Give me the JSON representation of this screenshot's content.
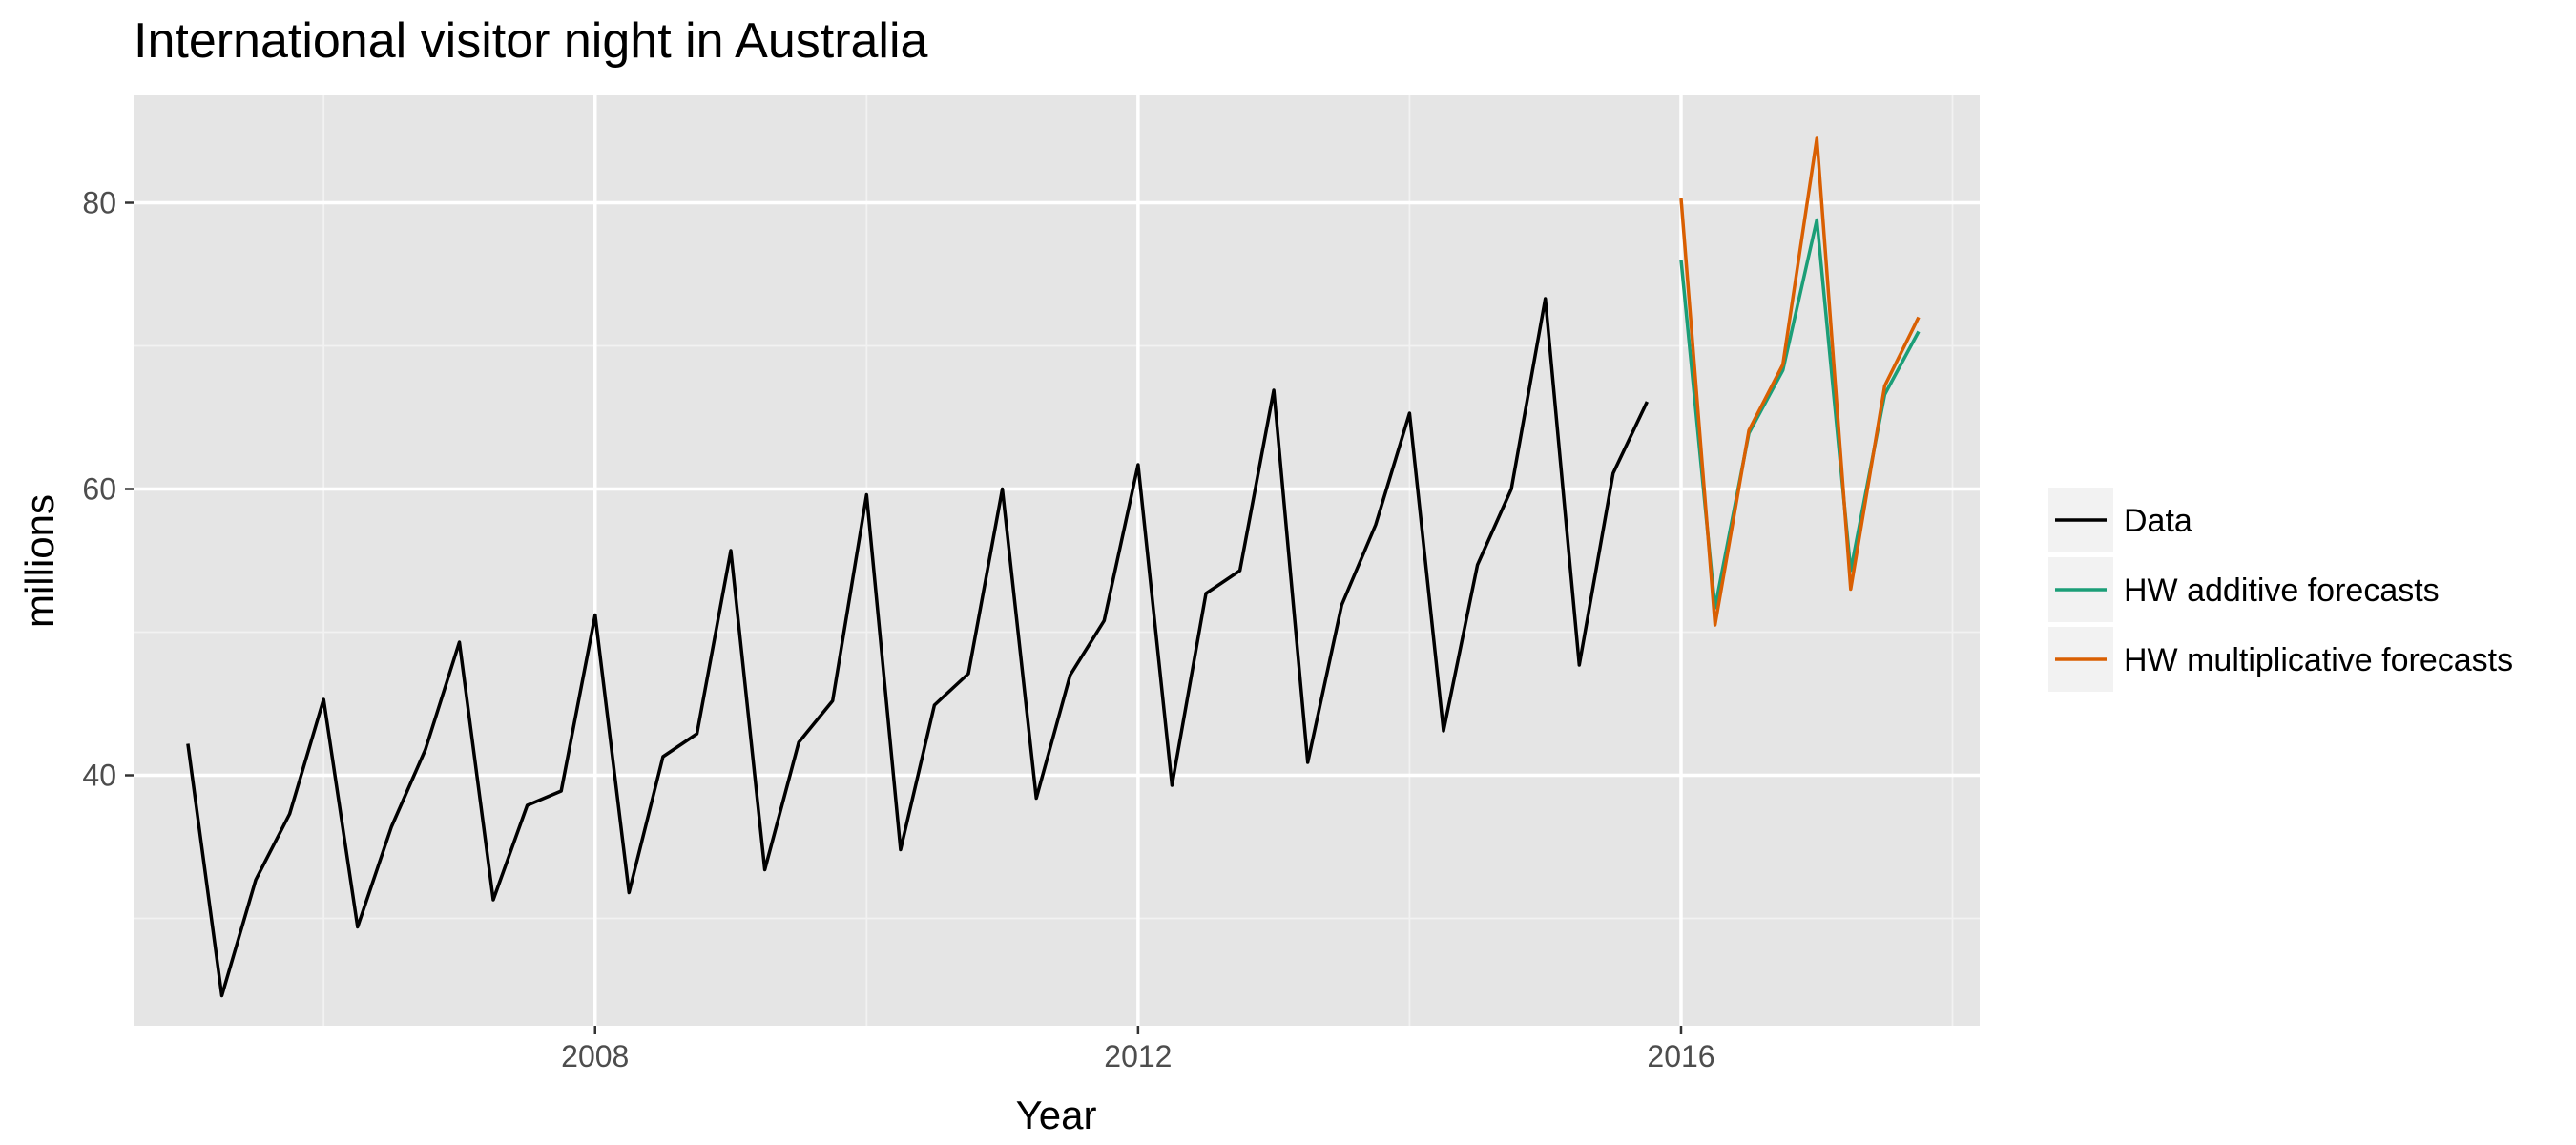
{
  "chart_data": {
    "type": "line",
    "title": "International visitor night in Australia",
    "xlabel": "Year",
    "ylabel": "millions",
    "xlim": [
      2004.6,
      2018.2
    ],
    "ylim": [
      22.5,
      87.5
    ],
    "x_ticks": [
      2008,
      2012,
      2016
    ],
    "x_tick_labels": [
      "2008",
      "2012",
      "2016"
    ],
    "y_ticks": [
      40,
      60,
      80
    ],
    "y_tick_labels": [
      "40",
      "60",
      "80"
    ],
    "grid": true,
    "legend_position": "right",
    "series": [
      {
        "name": "Data",
        "color": "#000000",
        "x": [
          2005.0,
          2005.25,
          2005.5,
          2005.75,
          2006.0,
          2006.25,
          2006.5,
          2006.75,
          2007.0,
          2007.25,
          2007.5,
          2007.75,
          2008.0,
          2008.25,
          2008.5,
          2008.75,
          2009.0,
          2009.25,
          2009.5,
          2009.75,
          2010.0,
          2010.25,
          2010.5,
          2010.75,
          2011.0,
          2011.25,
          2011.5,
          2011.75,
          2012.0,
          2012.25,
          2012.5,
          2012.75,
          2013.0,
          2013.25,
          2013.5,
          2013.75,
          2014.0,
          2014.25,
          2014.5,
          2014.75,
          2015.0,
          2015.25,
          2015.5,
          2015.75
        ],
        "y": [
          42.2,
          24.6,
          32.7,
          37.3,
          45.3,
          29.4,
          36.4,
          41.8,
          49.3,
          31.3,
          37.9,
          38.9,
          51.2,
          31.8,
          41.3,
          42.9,
          55.7,
          33.4,
          42.3,
          45.2,
          59.6,
          34.8,
          44.9,
          47.1,
          60.0,
          38.4,
          47.0,
          50.8,
          61.7,
          39.3,
          52.7,
          54.3,
          66.9,
          40.9,
          51.9,
          57.5,
          65.3,
          43.1,
          54.7,
          60.0,
          73.3,
          47.7,
          61.1,
          66.1
        ]
      },
      {
        "name": "HW additive forecasts",
        "color": "#1b9e77",
        "x": [
          2016.0,
          2016.25,
          2016.5,
          2016.75,
          2017.0,
          2017.25,
          2017.5,
          2017.75
        ],
        "y": [
          76.0,
          51.7,
          63.9,
          68.3,
          78.8,
          54.3,
          66.6,
          71.0
        ]
      },
      {
        "name": "HW multiplicative forecasts",
        "color": "#d95f02",
        "x": [
          2016.0,
          2016.25,
          2016.5,
          2016.75,
          2017.0,
          2017.25,
          2017.5,
          2017.75
        ],
        "y": [
          80.3,
          50.5,
          64.1,
          68.7,
          84.5,
          53.0,
          67.2,
          72.0
        ]
      }
    ]
  }
}
